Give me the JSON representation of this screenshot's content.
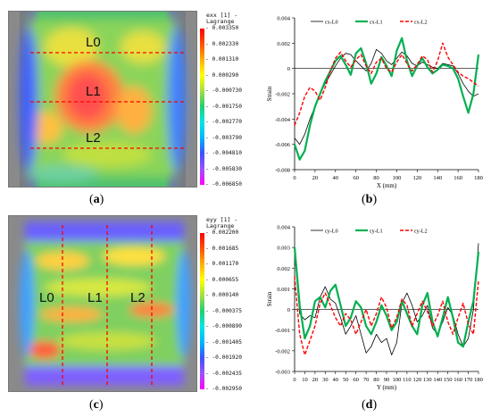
{
  "panels": {
    "a": {
      "label": "a",
      "colorbar_title": [
        "exx [1] -",
        "Lagrange"
      ],
      "colorbar_ticks": [
        "0.003350",
        "0.002330",
        "0.001310",
        "0.000290",
        "-0.000730",
        "-0.001750",
        "-0.002770",
        "-0.003790",
        "-0.004810",
        "-0.005830",
        "-0.006850"
      ],
      "line_labels": [
        "L0",
        "L1",
        "L2"
      ]
    },
    "b": {
      "label": "b"
    },
    "c": {
      "label": "c",
      "colorbar_title": [
        "eyy [1] -",
        "Lagrange"
      ],
      "colorbar_ticks": [
        "0.002200",
        "0.001685",
        "0.001170",
        "0.000655",
        "0.000140",
        "-0.000375",
        "-0.000890",
        "-0.001405",
        "-0.001920",
        "-0.002435",
        "-0.002950"
      ],
      "line_labels": [
        "L0",
        "L1",
        "L2"
      ]
    },
    "d": {
      "label": "d"
    }
  },
  "colors": {
    "colormap": [
      "#ff00ff",
      "#a050ff",
      "#3c50ff",
      "#00b4ff",
      "#00e6e6",
      "#20d070",
      "#a0e040",
      "#ffff00",
      "#ffb000",
      "#ff5000",
      "#ff0000"
    ],
    "dashed_line": "#ff0000",
    "series_black": "#000000",
    "series_green": "#00b050",
    "series_red": "#ff0000"
  },
  "chart_data": [
    {
      "type": "line",
      "panel": "b",
      "xlabel": "X (mm)",
      "ylabel": "Strain",
      "xlim": [
        0,
        180
      ],
      "ylim": [
        -0.008,
        0.004
      ],
      "xticks": [
        0,
        20,
        40,
        60,
        80,
        100,
        120,
        140,
        160,
        180
      ],
      "yticks": [
        -0.008,
        -0.006,
        -0.004,
        -0.002,
        0,
        0.002,
        0.004
      ],
      "ytick_labels": [
        "-0.008",
        "-0.006",
        "-0.004",
        "-0.002",
        "0",
        "0.002",
        "0.004"
      ],
      "legend_position": "top",
      "series": [
        {
          "name": "εx-L0",
          "style": "solid",
          "width": 0.8,
          "color": "#000000",
          "x": [
            0,
            5,
            10,
            15,
            20,
            25,
            30,
            35,
            40,
            45,
            50,
            55,
            60,
            65,
            70,
            75,
            80,
            85,
            90,
            95,
            100,
            105,
            110,
            115,
            120,
            125,
            130,
            135,
            140,
            145,
            150,
            155,
            160,
            165,
            170,
            175,
            180
          ],
          "y": [
            -0.0055,
            -0.006,
            -0.0052,
            -0.004,
            -0.003,
            -0.002,
            -0.0012,
            -0.0005,
            0.0002,
            0.0008,
            0.0012,
            0.0011,
            0.0006,
            0.0002,
            -0.0002,
            0.0004,
            0.0015,
            0.0012,
            0.0006,
            0.0003,
            0.0008,
            0.0013,
            0.001,
            0.0004,
            0.0002,
            0.0005,
            0.0003,
            0.0001,
            0.0,
            0.0004,
            0.0003,
            0.0002,
            -0.0004,
            -0.0012,
            -0.0018,
            -0.0022,
            -0.002
          ]
        },
        {
          "name": "εx-L1",
          "style": "solid",
          "width": 2.2,
          "color": "#00b050",
          "x": [
            0,
            5,
            10,
            15,
            20,
            25,
            30,
            35,
            40,
            45,
            50,
            55,
            60,
            65,
            70,
            75,
            80,
            85,
            90,
            95,
            100,
            105,
            110,
            115,
            120,
            125,
            130,
            135,
            140,
            145,
            150,
            155,
            160,
            165,
            170,
            175,
            180
          ],
          "y": [
            -0.006,
            -0.0072,
            -0.0065,
            -0.0045,
            -0.003,
            -0.002,
            -0.001,
            -0.0002,
            0.0006,
            0.001,
            0.0003,
            -0.0005,
            0.0012,
            0.0016,
            0.0004,
            -0.0012,
            -0.0004,
            0.0009,
            0.0002,
            -0.0006,
            0.0014,
            0.0024,
            0.0006,
            -0.0006,
            0.0002,
            0.0008,
            0.0001,
            -0.0004,
            -0.0001,
            0.0003,
            0.0002,
            0.0,
            -0.0008,
            -0.0022,
            -0.0035,
            -0.002,
            0.0011
          ]
        },
        {
          "name": "εx-L2",
          "style": "dashed",
          "width": 1.4,
          "color": "#ff0000",
          "x": [
            0,
            5,
            10,
            15,
            20,
            25,
            30,
            35,
            40,
            45,
            50,
            55,
            60,
            65,
            70,
            75,
            80,
            85,
            90,
            95,
            100,
            105,
            110,
            115,
            120,
            125,
            130,
            135,
            140,
            145,
            150,
            155,
            160,
            165,
            170,
            175,
            180
          ],
          "y": [
            -0.0045,
            -0.0035,
            -0.0022,
            -0.0015,
            -0.0018,
            -0.0025,
            -0.0015,
            -0.0002,
            0.0008,
            0.0013,
            0.0006,
            0.0001,
            0.0007,
            0.0011,
            0.0002,
            -0.0004,
            0.0005,
            0.0008,
            0.0,
            -0.0003,
            0.0005,
            0.0011,
            0.0004,
            -0.0002,
            0.0003,
            0.001,
            0.0007,
            -0.0003,
            0.0006,
            0.002,
            0.0009,
            0.0003,
            -0.0003,
            -0.0006,
            -0.0008,
            -0.0011,
            -0.0014
          ]
        }
      ],
      "legend": [
        "εx-L0",
        "εx-L1",
        "εx-L2"
      ]
    },
    {
      "type": "line",
      "panel": "d",
      "xlabel": "Y (mm)",
      "ylabel": "Strain",
      "xlim": [
        0,
        180
      ],
      "ylim": [
        -0.003,
        0.004
      ],
      "xticks": [
        0,
        10,
        20,
        30,
        40,
        50,
        60,
        70,
        80,
        90,
        100,
        110,
        120,
        130,
        140,
        150,
        160,
        170,
        180
      ],
      "yticks": [
        -0.003,
        -0.002,
        -0.001,
        0,
        0.001,
        0.002,
        0.003,
        0.004
      ],
      "ytick_labels": [
        "-0.003",
        "-0.002",
        "-0.001",
        "0",
        "0.001",
        "0.002",
        "0.003",
        "0.004"
      ],
      "legend_position": "top",
      "series": [
        {
          "name": "εy-L0",
          "style": "solid",
          "width": 0.8,
          "color": "#000000",
          "x": [
            0,
            5,
            10,
            15,
            20,
            25,
            30,
            35,
            40,
            45,
            50,
            55,
            60,
            65,
            70,
            75,
            80,
            85,
            90,
            95,
            100,
            105,
            110,
            115,
            120,
            125,
            130,
            135,
            140,
            145,
            150,
            155,
            160,
            165,
            170,
            175,
            180
          ],
          "y": [
            0.0028,
            -0.0002,
            -0.0005,
            -0.0003,
            -0.0004,
            0.0006,
            0.0011,
            0.0005,
            0.0003,
            -0.0004,
            -0.0012,
            -0.0008,
            -0.0003,
            -0.0012,
            -0.0021,
            -0.0018,
            -0.0012,
            -0.0016,
            -0.0014,
            -0.0022,
            -0.0016,
            0.0003,
            0.0008,
            0.0002,
            -0.0006,
            -0.0003,
            0.0002,
            -0.0009,
            -0.0012,
            -0.0006,
            0.0001,
            -0.0003,
            -0.0012,
            -0.0018,
            -0.0014,
            0.0,
            0.0032
          ]
        },
        {
          "name": "εy-L1",
          "style": "solid",
          "width": 2.2,
          "color": "#00b050",
          "x": [
            0,
            5,
            10,
            15,
            20,
            25,
            30,
            35,
            40,
            45,
            50,
            55,
            60,
            65,
            70,
            75,
            80,
            85,
            90,
            95,
            100,
            105,
            110,
            115,
            120,
            125,
            130,
            135,
            140,
            145,
            150,
            155,
            160,
            165,
            170,
            175,
            180
          ],
          "y": [
            0.003,
            0.0002,
            -0.0014,
            -0.0008,
            0.0004,
            0.0006,
            0.0001,
            0.0009,
            0.0012,
            0.0002,
            -0.0008,
            -0.0004,
            0.0004,
            0.0001,
            -0.0008,
            -0.0012,
            -0.0006,
            0.0002,
            -0.0003,
            -0.001,
            -0.0006,
            0.0004,
            -0.0002,
            -0.0008,
            -0.0012,
            0.0002,
            0.0008,
            -0.0006,
            -0.0013,
            -0.0004,
            0.0006,
            -0.0004,
            -0.0016,
            -0.0018,
            -0.0006,
            0.0004,
            0.0028
          ]
        },
        {
          "name": "εy-L2",
          "style": "dashed",
          "width": 1.4,
          "color": "#ff0000",
          "x": [
            0,
            5,
            10,
            15,
            20,
            25,
            30,
            35,
            40,
            45,
            50,
            55,
            60,
            65,
            70,
            75,
            80,
            85,
            90,
            95,
            100,
            105,
            110,
            115,
            120,
            125,
            130,
            135,
            140,
            145,
            150,
            155,
            160,
            165,
            170,
            175,
            180
          ],
          "y": [
            0.0016,
            -0.0012,
            -0.0022,
            -0.0015,
            -0.0008,
            0.0003,
            0.0008,
            0.0002,
            -0.0004,
            -0.0008,
            -0.0002,
            -0.0005,
            -0.0012,
            -0.0006,
            0.0,
            -0.0008,
            -0.0002,
            0.0006,
            0.0001,
            -0.0009,
            -0.0004,
            0.0005,
            0.0002,
            -0.0008,
            -0.0002,
            0.0004,
            -0.0001,
            -0.0008,
            -0.0003,
            0.0004,
            -0.0006,
            -0.0012,
            -0.0004,
            0.0003,
            -0.0007,
            -0.0012,
            0.0014
          ]
        }
      ],
      "legend": [
        "εy-L0",
        "εy-L1",
        "εy-L2"
      ]
    }
  ]
}
